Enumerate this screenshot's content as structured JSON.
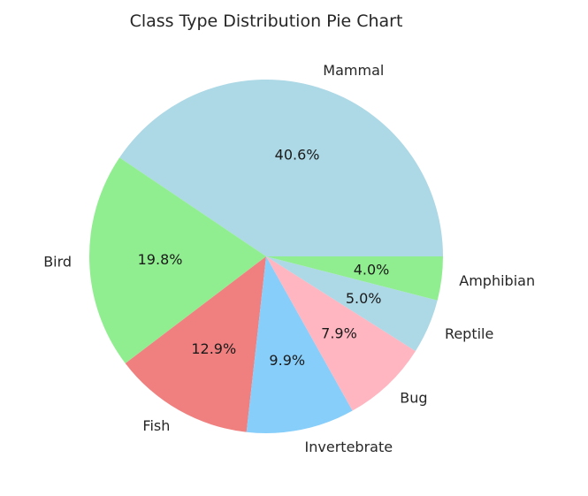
{
  "chart_data": {
    "type": "pie",
    "title": "Class Type Distribution Pie Chart",
    "start_angle_deg": 0,
    "direction": "counterclockwise",
    "slices": [
      {
        "label": "Mammal",
        "value": 40.6,
        "pct_label": "40.6%",
        "color": "#add8e6"
      },
      {
        "label": "Bird",
        "value": 19.8,
        "pct_label": "19.8%",
        "color": "#90ee90"
      },
      {
        "label": "Fish",
        "value": 12.9,
        "pct_label": "12.9%",
        "color": "#f08080"
      },
      {
        "label": "Invertebrate",
        "value": 9.9,
        "pct_label": "9.9%",
        "color": "#87cefa"
      },
      {
        "label": "Bug",
        "value": 7.9,
        "pct_label": "7.9%",
        "color": "#ffb6c1"
      },
      {
        "label": "Reptile",
        "value": 5.0,
        "pct_label": "5.0%",
        "color": "#add8e6"
      },
      {
        "label": "Amphibian",
        "value": 4.0,
        "pct_label": "4.0%",
        "color": "#90ee90"
      }
    ]
  }
}
